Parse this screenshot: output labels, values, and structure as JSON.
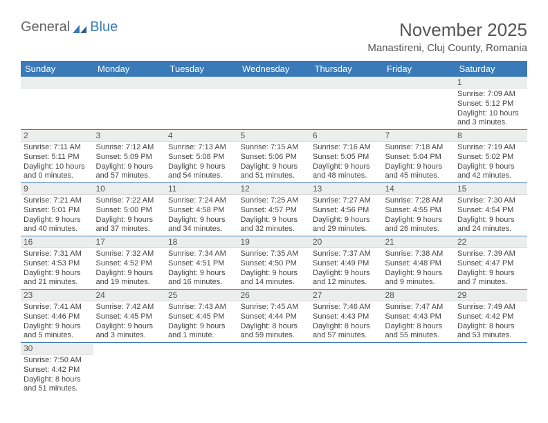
{
  "brand": {
    "part1": "General",
    "part2": "Blue"
  },
  "title": "November 2025",
  "location": "Manastireni, Cluj County, Romania",
  "colors": {
    "header_bg": "#3a7ab8",
    "header_text": "#ffffff",
    "daynum_bg": "#eceded",
    "text": "#444444",
    "border": "#3a7ab8"
  },
  "fonts": {
    "title_size": 26,
    "location_size": 15,
    "th_size": 13,
    "cell_size": 11
  },
  "dayHeaders": [
    "Sunday",
    "Monday",
    "Tuesday",
    "Wednesday",
    "Thursday",
    "Friday",
    "Saturday"
  ],
  "weeks": [
    [
      null,
      null,
      null,
      null,
      null,
      null,
      {
        "n": "1",
        "sr": "Sunrise: 7:09 AM",
        "ss": "Sunset: 5:12 PM",
        "d1": "Daylight: 10 hours",
        "d2": "and 3 minutes."
      }
    ],
    [
      {
        "n": "2",
        "sr": "Sunrise: 7:11 AM",
        "ss": "Sunset: 5:11 PM",
        "d1": "Daylight: 10 hours",
        "d2": "and 0 minutes."
      },
      {
        "n": "3",
        "sr": "Sunrise: 7:12 AM",
        "ss": "Sunset: 5:09 PM",
        "d1": "Daylight: 9 hours",
        "d2": "and 57 minutes."
      },
      {
        "n": "4",
        "sr": "Sunrise: 7:13 AM",
        "ss": "Sunset: 5:08 PM",
        "d1": "Daylight: 9 hours",
        "d2": "and 54 minutes."
      },
      {
        "n": "5",
        "sr": "Sunrise: 7:15 AM",
        "ss": "Sunset: 5:06 PM",
        "d1": "Daylight: 9 hours",
        "d2": "and 51 minutes."
      },
      {
        "n": "6",
        "sr": "Sunrise: 7:16 AM",
        "ss": "Sunset: 5:05 PM",
        "d1": "Daylight: 9 hours",
        "d2": "and 48 minutes."
      },
      {
        "n": "7",
        "sr": "Sunrise: 7:18 AM",
        "ss": "Sunset: 5:04 PM",
        "d1": "Daylight: 9 hours",
        "d2": "and 45 minutes."
      },
      {
        "n": "8",
        "sr": "Sunrise: 7:19 AM",
        "ss": "Sunset: 5:02 PM",
        "d1": "Daylight: 9 hours",
        "d2": "and 42 minutes."
      }
    ],
    [
      {
        "n": "9",
        "sr": "Sunrise: 7:21 AM",
        "ss": "Sunset: 5:01 PM",
        "d1": "Daylight: 9 hours",
        "d2": "and 40 minutes."
      },
      {
        "n": "10",
        "sr": "Sunrise: 7:22 AM",
        "ss": "Sunset: 5:00 PM",
        "d1": "Daylight: 9 hours",
        "d2": "and 37 minutes."
      },
      {
        "n": "11",
        "sr": "Sunrise: 7:24 AM",
        "ss": "Sunset: 4:58 PM",
        "d1": "Daylight: 9 hours",
        "d2": "and 34 minutes."
      },
      {
        "n": "12",
        "sr": "Sunrise: 7:25 AM",
        "ss": "Sunset: 4:57 PM",
        "d1": "Daylight: 9 hours",
        "d2": "and 32 minutes."
      },
      {
        "n": "13",
        "sr": "Sunrise: 7:27 AM",
        "ss": "Sunset: 4:56 PM",
        "d1": "Daylight: 9 hours",
        "d2": "and 29 minutes."
      },
      {
        "n": "14",
        "sr": "Sunrise: 7:28 AM",
        "ss": "Sunset: 4:55 PM",
        "d1": "Daylight: 9 hours",
        "d2": "and 26 minutes."
      },
      {
        "n": "15",
        "sr": "Sunrise: 7:30 AM",
        "ss": "Sunset: 4:54 PM",
        "d1": "Daylight: 9 hours",
        "d2": "and 24 minutes."
      }
    ],
    [
      {
        "n": "16",
        "sr": "Sunrise: 7:31 AM",
        "ss": "Sunset: 4:53 PM",
        "d1": "Daylight: 9 hours",
        "d2": "and 21 minutes."
      },
      {
        "n": "17",
        "sr": "Sunrise: 7:32 AM",
        "ss": "Sunset: 4:52 PM",
        "d1": "Daylight: 9 hours",
        "d2": "and 19 minutes."
      },
      {
        "n": "18",
        "sr": "Sunrise: 7:34 AM",
        "ss": "Sunset: 4:51 PM",
        "d1": "Daylight: 9 hours",
        "d2": "and 16 minutes."
      },
      {
        "n": "19",
        "sr": "Sunrise: 7:35 AM",
        "ss": "Sunset: 4:50 PM",
        "d1": "Daylight: 9 hours",
        "d2": "and 14 minutes."
      },
      {
        "n": "20",
        "sr": "Sunrise: 7:37 AM",
        "ss": "Sunset: 4:49 PM",
        "d1": "Daylight: 9 hours",
        "d2": "and 12 minutes."
      },
      {
        "n": "21",
        "sr": "Sunrise: 7:38 AM",
        "ss": "Sunset: 4:48 PM",
        "d1": "Daylight: 9 hours",
        "d2": "and 9 minutes."
      },
      {
        "n": "22",
        "sr": "Sunrise: 7:39 AM",
        "ss": "Sunset: 4:47 PM",
        "d1": "Daylight: 9 hours",
        "d2": "and 7 minutes."
      }
    ],
    [
      {
        "n": "23",
        "sr": "Sunrise: 7:41 AM",
        "ss": "Sunset: 4:46 PM",
        "d1": "Daylight: 9 hours",
        "d2": "and 5 minutes."
      },
      {
        "n": "24",
        "sr": "Sunrise: 7:42 AM",
        "ss": "Sunset: 4:45 PM",
        "d1": "Daylight: 9 hours",
        "d2": "and 3 minutes."
      },
      {
        "n": "25",
        "sr": "Sunrise: 7:43 AM",
        "ss": "Sunset: 4:45 PM",
        "d1": "Daylight: 9 hours",
        "d2": "and 1 minute."
      },
      {
        "n": "26",
        "sr": "Sunrise: 7:45 AM",
        "ss": "Sunset: 4:44 PM",
        "d1": "Daylight: 8 hours",
        "d2": "and 59 minutes."
      },
      {
        "n": "27",
        "sr": "Sunrise: 7:46 AM",
        "ss": "Sunset: 4:43 PM",
        "d1": "Daylight: 8 hours",
        "d2": "and 57 minutes."
      },
      {
        "n": "28",
        "sr": "Sunrise: 7:47 AM",
        "ss": "Sunset: 4:43 PM",
        "d1": "Daylight: 8 hours",
        "d2": "and 55 minutes."
      },
      {
        "n": "29",
        "sr": "Sunrise: 7:49 AM",
        "ss": "Sunset: 4:42 PM",
        "d1": "Daylight: 8 hours",
        "d2": "and 53 minutes."
      }
    ],
    [
      {
        "n": "30",
        "sr": "Sunrise: 7:50 AM",
        "ss": "Sunset: 4:42 PM",
        "d1": "Daylight: 8 hours",
        "d2": "and 51 minutes."
      },
      null,
      null,
      null,
      null,
      null,
      null
    ]
  ]
}
